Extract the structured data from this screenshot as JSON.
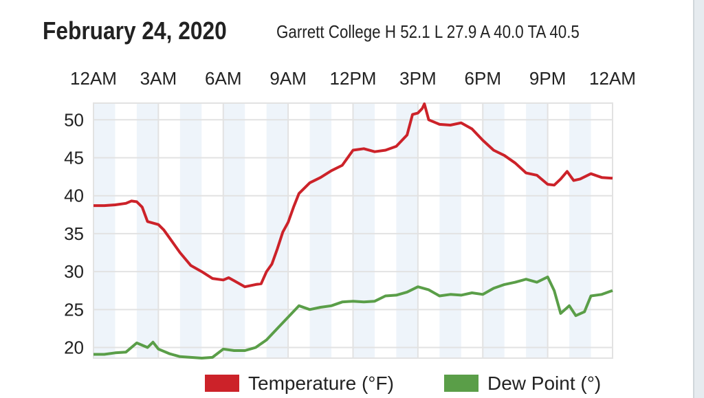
{
  "chart_data": {
    "type": "line",
    "title": "February 24, 2020",
    "subtitle": "Garrett College H 52.1 L 27.9 A 40.0 TA 40.5",
    "xlabel": "",
    "ylabel": "",
    "x_ticks": [
      "12AM",
      "3AM",
      "6AM",
      "9AM",
      "12PM",
      "3PM",
      "6PM",
      "9PM",
      "12AM"
    ],
    "x_range_hours": [
      0,
      24
    ],
    "y_ticks": [
      20,
      25,
      30,
      35,
      40,
      45,
      50
    ],
    "ylim": [
      18.6,
      52.2
    ],
    "grid": true,
    "legend_position": "bottom",
    "colors": {
      "temperature": "#cc2229",
      "dew_point": "#5a9e48",
      "band": "#eef4fa",
      "grid": "#e2e2e2"
    },
    "series": [
      {
        "name": "Temperature (°F)",
        "x": [
          0,
          0.5,
          1,
          1.5,
          1.75,
          2,
          2.25,
          2.5,
          3,
          3.25,
          3.5,
          4,
          4.5,
          5,
          5.5,
          6,
          6.25,
          6.5,
          7,
          7.5,
          7.75,
          8,
          8.25,
          8.5,
          8.75,
          9,
          9.25,
          9.5,
          10,
          10.5,
          11,
          11.5,
          12,
          12.5,
          13,
          13.5,
          14,
          14.5,
          14.75,
          15,
          15.2,
          15.3,
          15.5,
          16,
          16.5,
          17,
          17.5,
          18,
          18.5,
          19,
          19.5,
          20,
          20.5,
          21,
          21.3,
          21.6,
          21.9,
          22.2,
          22.5,
          23,
          23.5,
          24
        ],
        "values": [
          38.7,
          38.7,
          38.8,
          39.0,
          39.3,
          39.2,
          38.5,
          36.6,
          36.2,
          35.5,
          34.5,
          32.5,
          30.8,
          30.0,
          29.1,
          28.9,
          29.2,
          28.8,
          28.0,
          28.3,
          28.4,
          30.0,
          31.0,
          33.0,
          35.2,
          36.5,
          38.5,
          40.3,
          41.7,
          42.4,
          43.3,
          44.0,
          46.0,
          46.2,
          45.8,
          46.0,
          46.5,
          48.0,
          50.7,
          50.9,
          51.5,
          52.1,
          50.0,
          49.4,
          49.3,
          49.6,
          48.8,
          47.3,
          46.0,
          45.3,
          44.3,
          43.0,
          42.7,
          41.5,
          41.4,
          42.2,
          43.2,
          42.0,
          42.2,
          42.9,
          42.4,
          42.3
        ]
      },
      {
        "name": "Dew Point (°)",
        "x": [
          0,
          0.5,
          1,
          1.5,
          2,
          2.5,
          2.75,
          3,
          3.5,
          4,
          4.5,
          5,
          5.5,
          6,
          6.5,
          7,
          7.5,
          8,
          8.5,
          9,
          9.5,
          10,
          10.5,
          11,
          11.5,
          12,
          12.5,
          13,
          13.5,
          14,
          14.5,
          15,
          15.5,
          16,
          16.5,
          17,
          17.5,
          18,
          18.5,
          19,
          19.5,
          20,
          20.5,
          21,
          21.3,
          21.6,
          22,
          22.3,
          22.7,
          23,
          23.5,
          24
        ],
        "values": [
          19.1,
          19.1,
          19.3,
          19.4,
          20.6,
          20.0,
          20.7,
          19.8,
          19.2,
          18.8,
          18.7,
          18.6,
          18.7,
          19.8,
          19.6,
          19.6,
          20.0,
          21.0,
          22.5,
          24.0,
          25.5,
          25.0,
          25.3,
          25.5,
          26.0,
          26.1,
          26.0,
          26.1,
          26.8,
          26.9,
          27.3,
          28.0,
          27.6,
          26.8,
          27.0,
          26.9,
          27.2,
          27.0,
          27.8,
          28.3,
          28.6,
          29.0,
          28.6,
          29.3,
          27.5,
          24.5,
          25.5,
          24.2,
          24.7,
          26.8,
          27.0,
          27.5
        ]
      }
    ]
  }
}
